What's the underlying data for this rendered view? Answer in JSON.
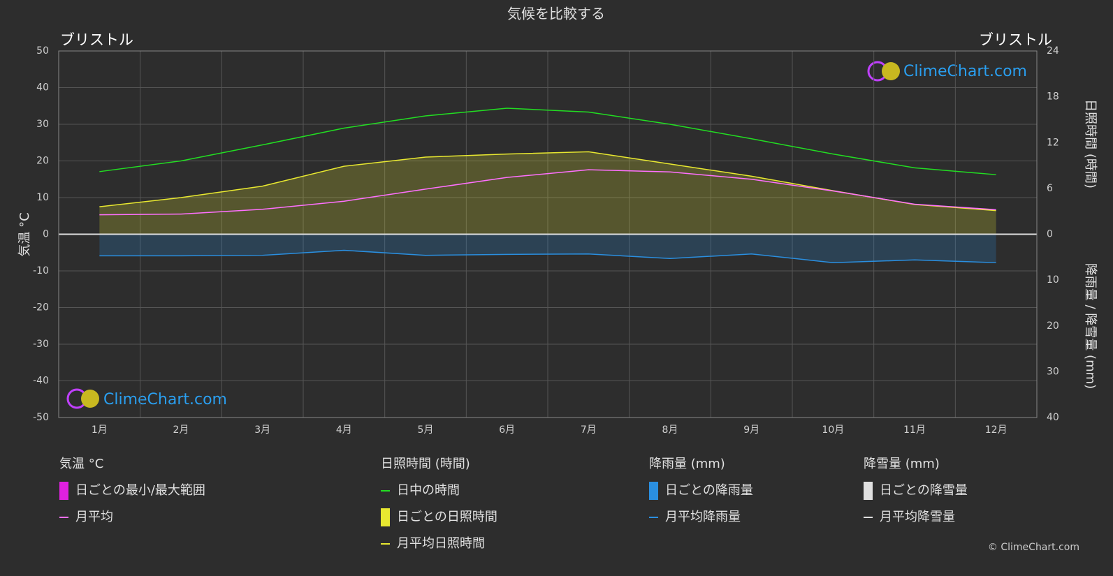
{
  "chart_data": {
    "type": "line",
    "title": "気候を比較する",
    "location_left": "ブリストル",
    "location_right": "ブリストル",
    "ylabel": "気温 °C",
    "y2label": "日照時間 (時間)",
    "y3label": "降雨量 / 降雪量 (mm)",
    "logo": "ClimeChart.com",
    "logo_bottom": "ClimeChart.com",
    "copyright": "© ClimeChart.com",
    "categories": [
      "1月",
      "2月",
      "3月",
      "4月",
      "5月",
      "6月",
      "7月",
      "8月",
      "9月",
      "10月",
      "11月",
      "12月"
    ],
    "ylim": [
      -50,
      50
    ],
    "yticks": [
      -50,
      -40,
      -30,
      -20,
      -10,
      0,
      10,
      20,
      30,
      40,
      50
    ],
    "y2lim": [
      0,
      24
    ],
    "y2ticks": [
      0,
      6,
      12,
      18,
      24
    ],
    "y3lim": [
      0,
      40
    ],
    "y3ticks": [
      10,
      20,
      30,
      40
    ],
    "grid": true,
    "series": [
      {
        "axis": "y2",
        "color": "#22dd22",
        "area": false,
        "values": [
          8.2,
          9.6,
          11.7,
          13.9,
          15.5,
          16.5,
          16.0,
          14.4,
          12.5,
          10.5,
          8.7,
          7.8
        ]
      },
      {
        "axis": "y2",
        "color": "#e8e830",
        "area": true,
        "values": [
          3.6,
          4.8,
          6.3,
          8.9,
          10.1,
          10.5,
          10.8,
          9.2,
          7.6,
          5.7,
          3.9,
          3.1
        ]
      },
      {
        "axis": "y",
        "color": "#ff70ff",
        "area": false,
        "values": [
          5.3,
          5.5,
          6.8,
          9.0,
          12.3,
          15.5,
          17.6,
          17.0,
          15.0,
          11.8,
          8.2,
          6.7
        ]
      },
      {
        "axis": "y3",
        "color": "#2a8fe0",
        "area": true,
        "values": [
          4.7,
          4.7,
          4.6,
          3.5,
          4.6,
          4.4,
          4.3,
          5.3,
          4.3,
          6.2,
          5.6,
          6.2
        ]
      },
      {
        "axis": "y3",
        "color": "#e0e0e0",
        "area": false,
        "values": [
          0,
          0,
          0,
          0,
          0,
          0,
          0,
          0,
          0,
          0,
          0,
          0
        ]
      }
    ],
    "legend": [
      {
        "title": "気温 °C",
        "entries": [
          {
            "label": "日ごとの最小/最大範囲",
            "color": "#e020e0",
            "style": "band"
          },
          {
            "label": "月平均",
            "color": "#ff70ff",
            "style": "line"
          }
        ]
      },
      {
        "title": "日照時間 (時間)",
        "entries": [
          {
            "label": "日中の時間",
            "color": "#22dd22",
            "style": "line"
          },
          {
            "label": "日ごとの日照時間",
            "color": "#e8e830",
            "style": "band"
          },
          {
            "label": "月平均日照時間",
            "color": "#e8e830",
            "style": "line"
          }
        ]
      },
      {
        "title": "降雨量 (mm)",
        "entries": [
          {
            "label": "日ごとの降雨量",
            "color": "#2a8fe0",
            "style": "band"
          },
          {
            "label": "月平均降雨量",
            "color": "#2a8fe0",
            "style": "line"
          }
        ]
      },
      {
        "title": "降雪量 (mm)",
        "entries": [
          {
            "label": "日ごとの降雪量",
            "color": "#e0e0e0",
            "style": "band"
          },
          {
            "label": "月平均降雪量",
            "color": "#e0e0e0",
            "style": "line"
          }
        ]
      }
    ]
  }
}
